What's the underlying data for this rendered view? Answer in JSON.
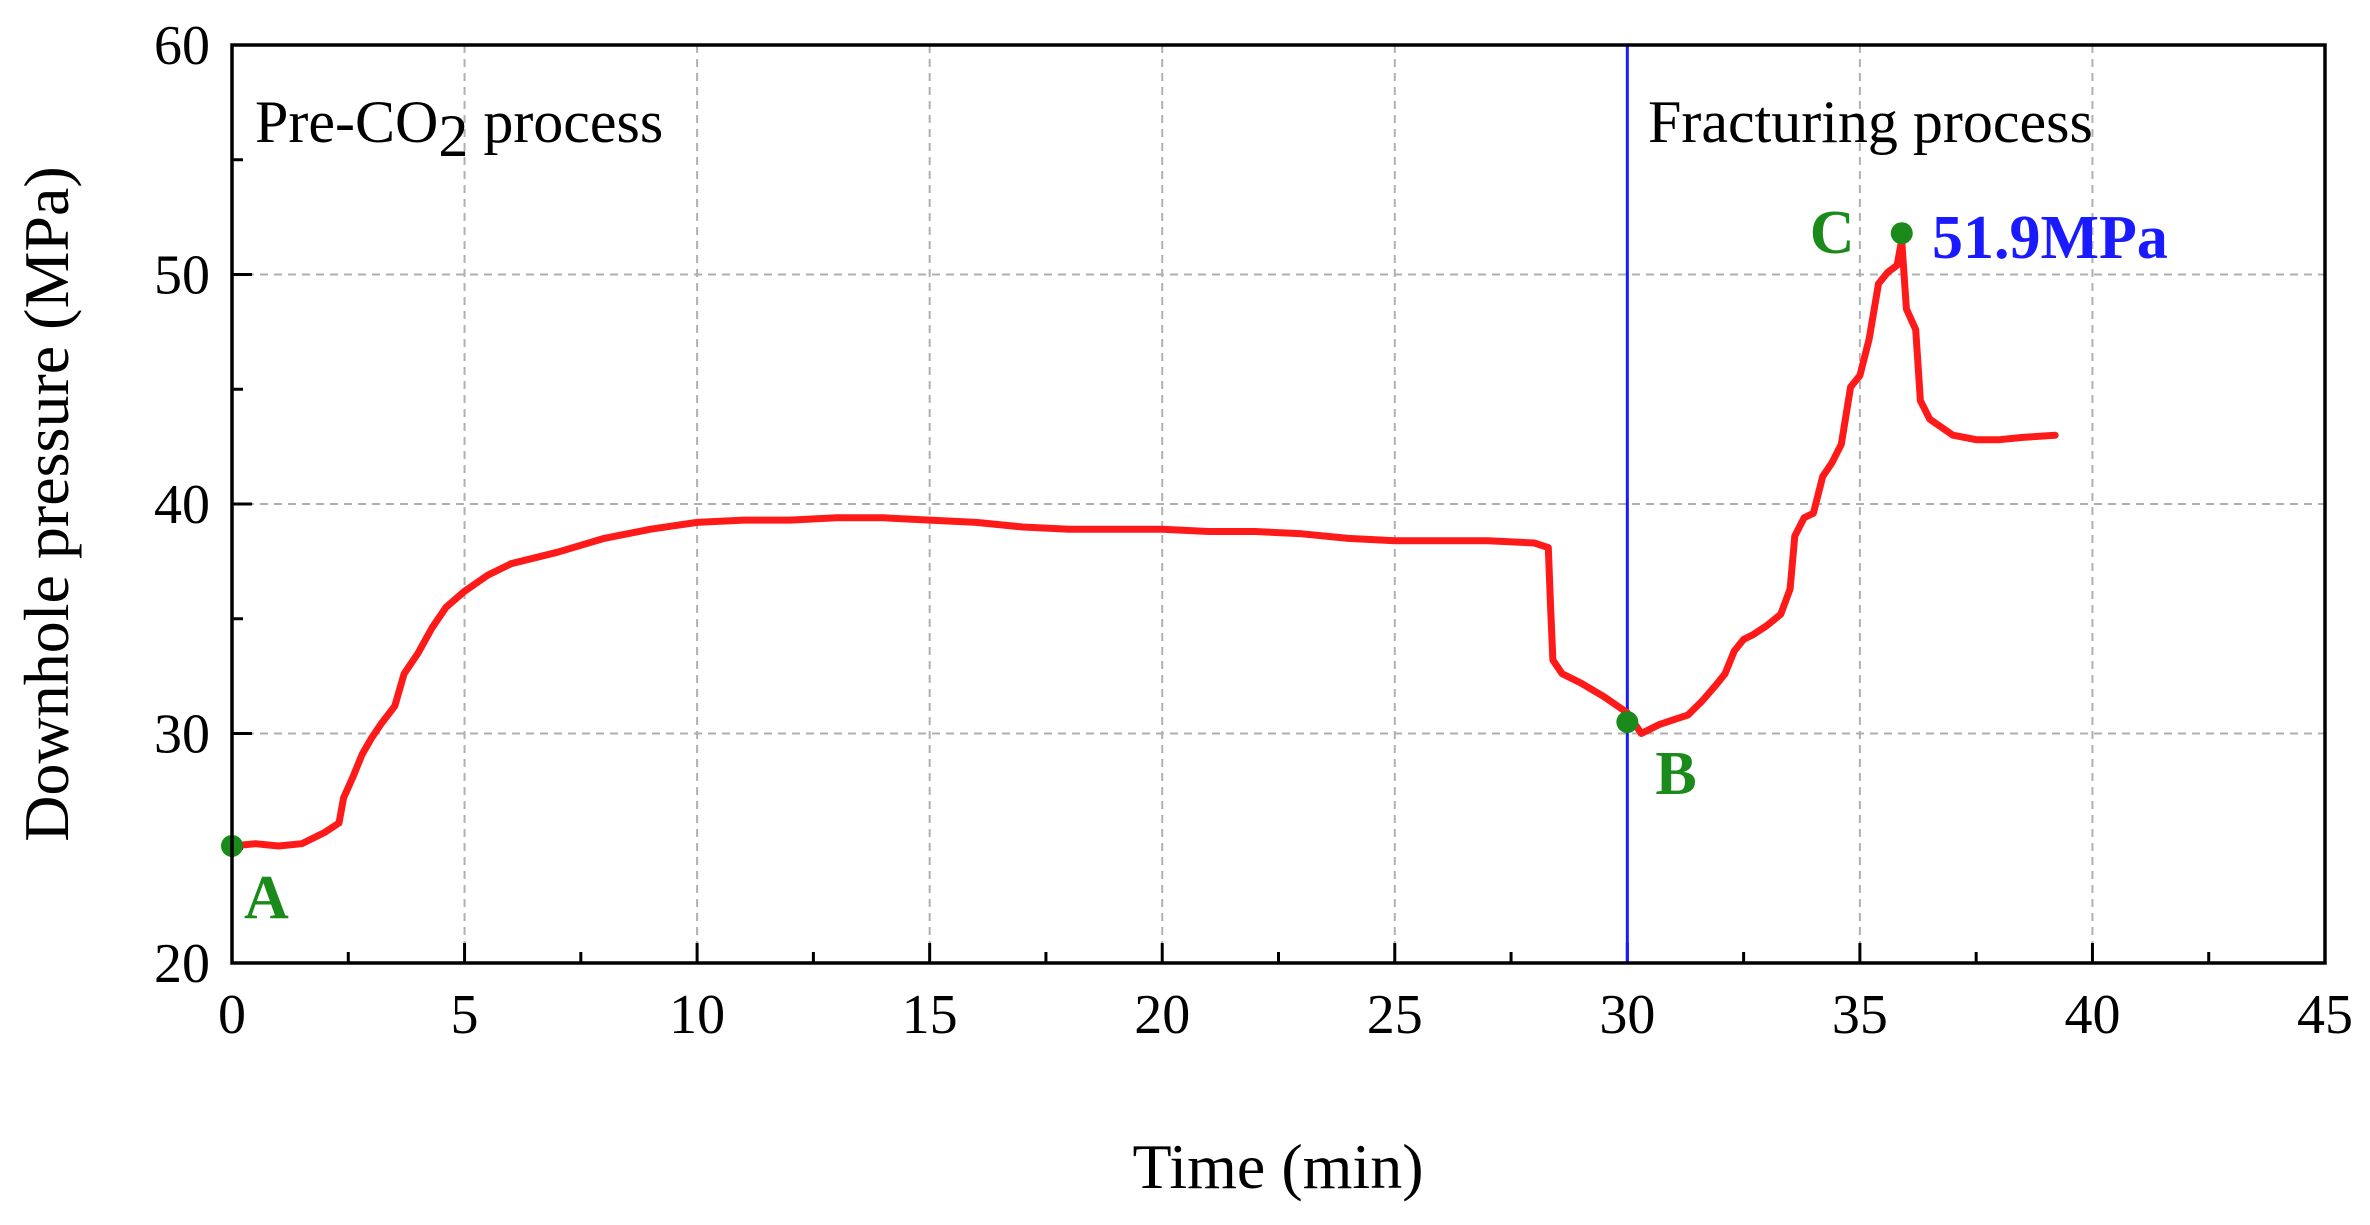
{
  "chart_data": {
    "type": "line",
    "xlabel": "Time (min)",
    "ylabel": "Downhole pressure (MPa)",
    "xlim": [
      0,
      45
    ],
    "ylim": [
      20,
      60
    ],
    "xticks": [
      0,
      5,
      10,
      15,
      20,
      25,
      30,
      35,
      40,
      45
    ],
    "yticks": [
      20,
      30,
      40,
      50,
      60
    ],
    "grid": true,
    "colors": {
      "line": "#ff1a1a",
      "divider": "#1a1aff",
      "points": "#1a8a1a",
      "peak_label": "#1a1aff"
    },
    "regions": {
      "left": {
        "prefix": "Pre-CO",
        "subscript": "2",
        "suffix": " process"
      },
      "right": "Fracturing process"
    },
    "divider_x": 30,
    "series": [
      {
        "x": [
          0,
          0.5,
          1,
          1.5,
          2,
          2.3,
          2.4,
          2.6,
          2.8,
          3,
          3.2,
          3.5,
          3.7,
          4,
          4.3,
          4.6,
          5,
          5.5,
          6,
          7,
          8,
          9,
          10,
          11,
          12,
          13,
          14,
          15,
          16,
          17,
          18,
          19,
          20,
          21,
          22,
          23,
          24,
          25,
          26,
          27,
          28,
          28.3,
          28.35,
          28.4,
          28.6,
          29,
          29.5,
          30,
          30.3,
          30.7,
          31,
          31.3,
          31.6,
          31.9,
          32.1,
          32.3,
          32.5,
          32.7,
          33,
          33.3,
          33.5,
          33.6,
          33.8,
          34,
          34.2,
          34.4,
          34.6,
          34.8,
          35,
          35.2,
          35.4,
          35.6,
          35.8,
          35.9,
          36,
          36.2,
          36.3,
          36.5,
          37,
          37.5,
          38,
          38.5,
          39.2
        ],
        "y": [
          25.1,
          25.2,
          25.1,
          25.2,
          25.7,
          26.1,
          27.2,
          28.1,
          29.1,
          29.8,
          30.4,
          31.2,
          32.6,
          33.5,
          34.6,
          35.5,
          36.2,
          36.9,
          37.4,
          37.9,
          38.5,
          38.9,
          39.2,
          39.3,
          39.3,
          39.4,
          39.4,
          39.3,
          39.2,
          39.0,
          38.9,
          38.9,
          38.9,
          38.8,
          38.8,
          38.7,
          38.5,
          38.4,
          38.4,
          38.4,
          38.3,
          38.1,
          35.5,
          33.2,
          32.6,
          32.2,
          31.6,
          30.9,
          30.0,
          30.4,
          30.6,
          30.8,
          31.4,
          32.1,
          32.6,
          33.6,
          34.1,
          34.3,
          34.7,
          35.2,
          36.3,
          38.6,
          39.4,
          39.6,
          41.2,
          41.8,
          42.6,
          45.1,
          45.6,
          47.2,
          49.6,
          50.1,
          50.4,
          51.5,
          48.5,
          47.6,
          44.5,
          43.7,
          43.0,
          42.8,
          42.8,
          42.9,
          43.0
        ]
      }
    ],
    "points": [
      {
        "label": "A",
        "x": 0,
        "y": 25.1
      },
      {
        "label": "B",
        "x": 30,
        "y": 30.5
      },
      {
        "label": "C",
        "x": 35.9,
        "y": 51.8
      }
    ],
    "peak_annotation": "51.9MPa"
  }
}
